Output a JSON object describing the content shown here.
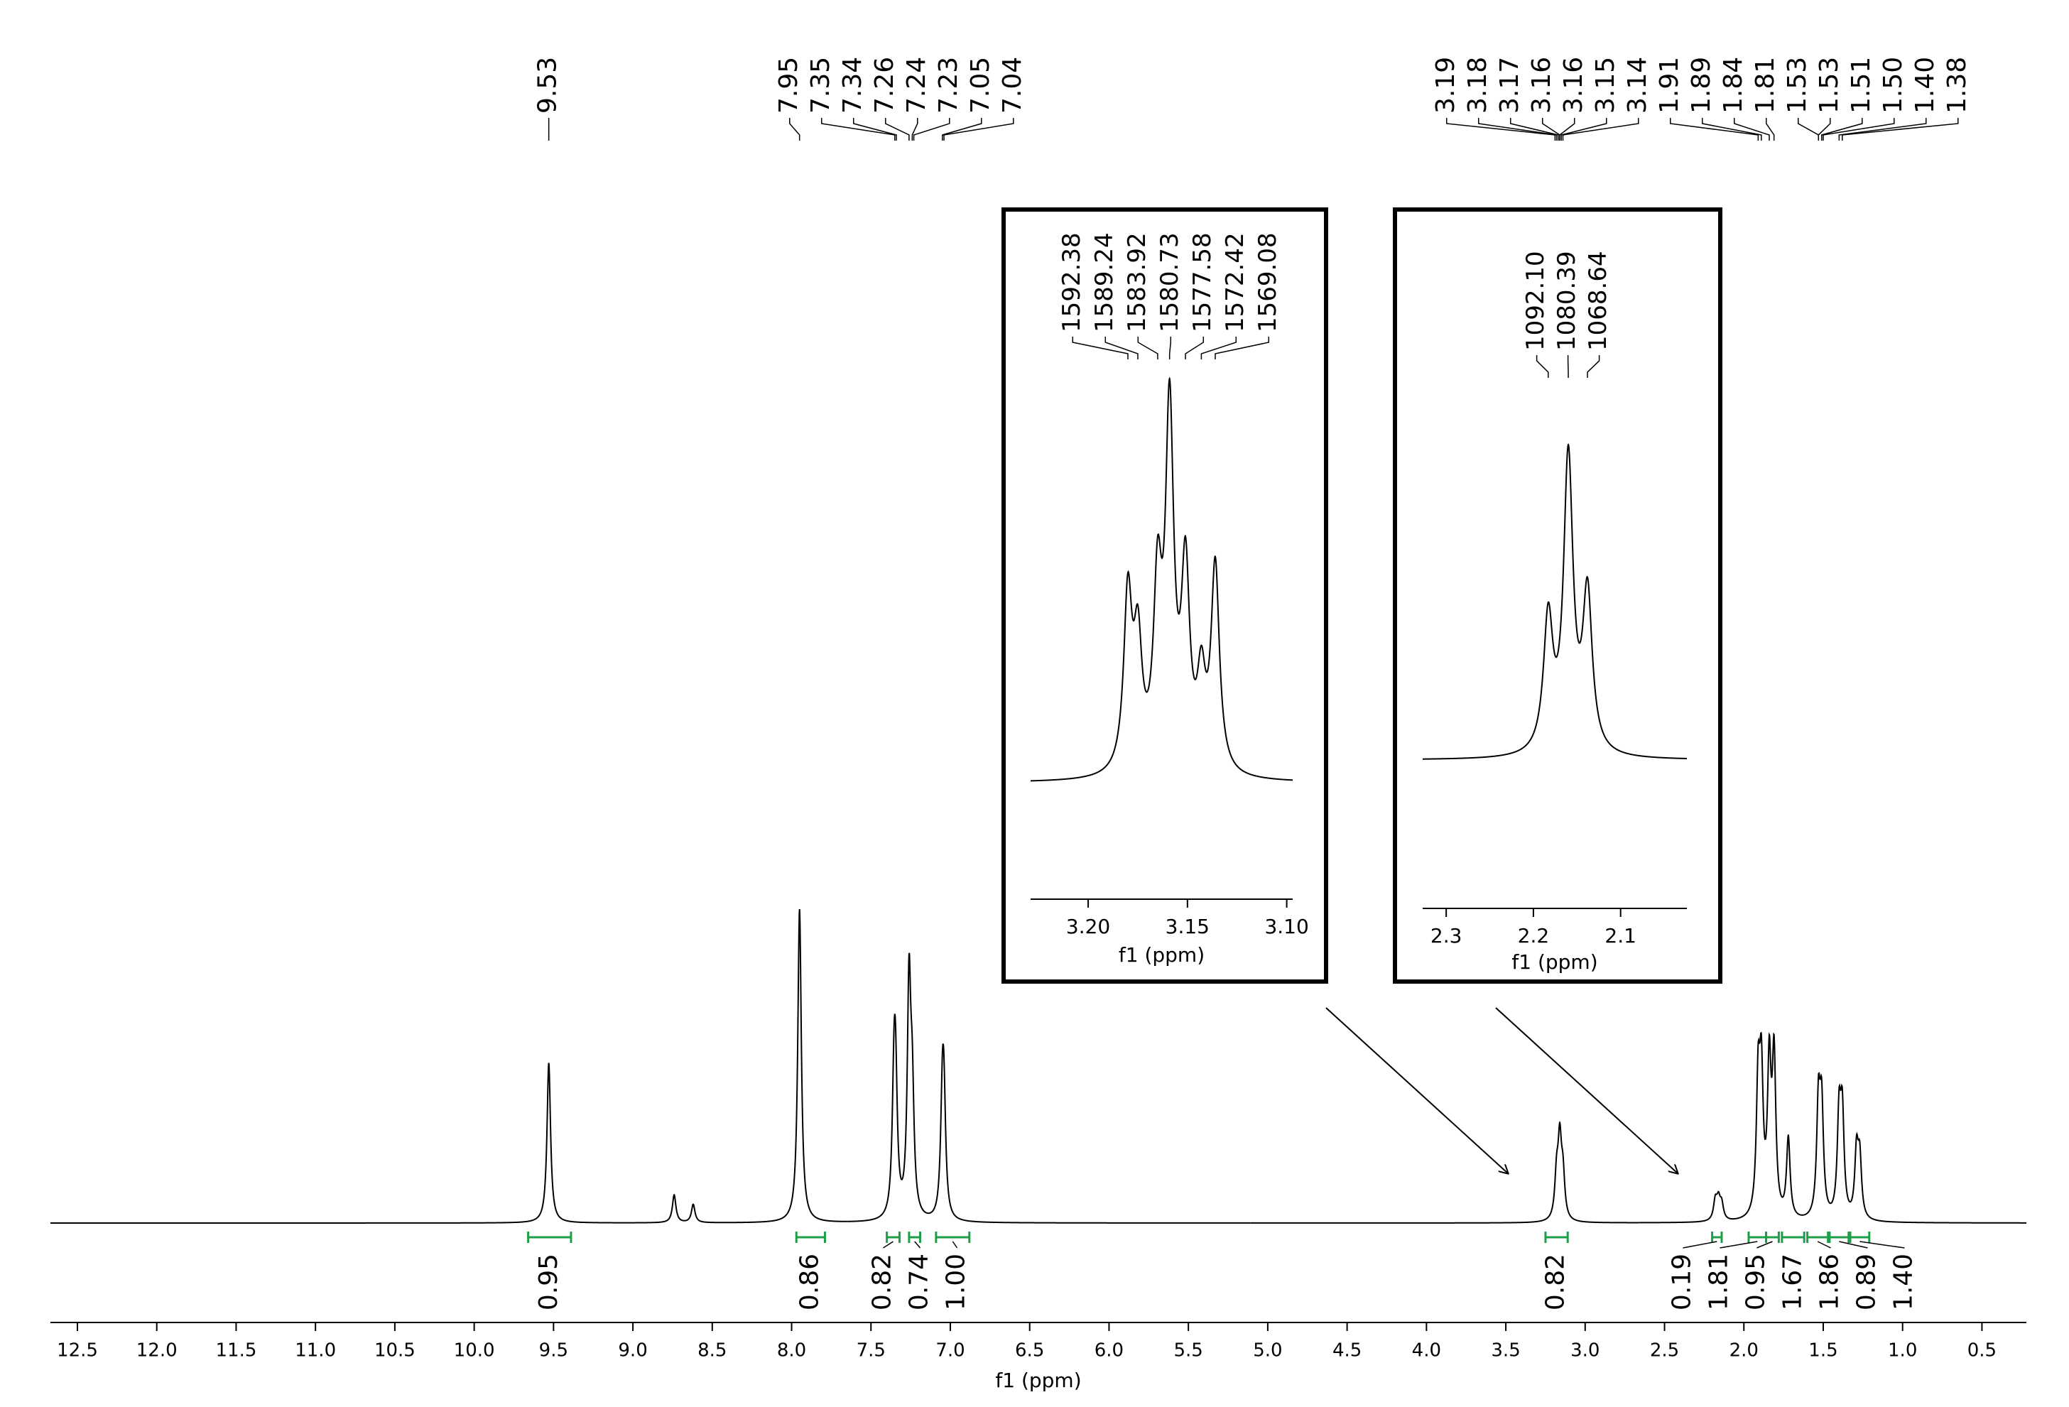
{
  "chart_data": [
    {
      "type": "nmr",
      "xlabel": "f1 (ppm)",
      "color": "#000000",
      "integral_color": "#1f9e4a",
      "xlim": [
        12.67,
        0.22
      ],
      "xticks": [
        12.5,
        {
          "value": 12,
          "label": "12.0"
        },
        11.5,
        {
          "value": 11,
          "label": "11.0"
        },
        10.5,
        {
          "value": 10,
          "label": "10.0"
        },
        9.5,
        {
          "value": 9,
          "label": "9.0"
        },
        8.5,
        {
          "value": 8,
          "label": "8.0"
        },
        7.5,
        {
          "value": 7,
          "label": "7.0"
        },
        6.5,
        {
          "value": 6,
          "label": "6.0"
        },
        5.5,
        {
          "value": 5,
          "label": "5.0"
        },
        4.5,
        {
          "value": 4,
          "label": "4.0"
        },
        3.5,
        {
          "value": 3,
          "label": "3.0"
        },
        2.5,
        {
          "value": 2,
          "label": "2.0"
        },
        1.5,
        {
          "value": 1,
          "label": "1.0"
        },
        0.5
      ],
      "peak_labels": {
        "values": [
          9.53,
          7.95,
          7.35,
          7.34,
          7.26,
          7.24,
          7.23,
          7.05,
          7.04,
          3.19,
          3.18,
          3.17,
          3.16,
          3.16,
          3.15,
          3.14,
          1.91,
          1.89,
          1.84,
          1.81,
          1.53,
          1.53,
          1.51,
          1.5,
          1.4,
          1.38
        ],
        "value_labels": [
          "9.53",
          "7.95",
          "7.35",
          "7.34",
          "7.26",
          "7.24",
          "7.23",
          "7.05",
          "7.04",
          "3.19",
          "3.18",
          "3.17",
          "3.16",
          "3.16",
          "3.15",
          "3.14",
          "1.91",
          "1.89",
          "1.84",
          "1.81",
          "1.53",
          "1.53",
          "1.51",
          "1.50",
          "1.40",
          "1.38"
        ]
      },
      "peaks": {
        "x": [
          9.53,
          8.74,
          8.62,
          7.95,
          7.355,
          7.345,
          7.26,
          7.24,
          7.05,
          7.04,
          3.18,
          3.16,
          3.14,
          2.18,
          2.16,
          2.14,
          1.91,
          1.89,
          1.84,
          1.81,
          1.72,
          1.53,
          1.51,
          1.4,
          1.38,
          1.29,
          1.27
        ],
        "heights": [
          51,
          9,
          6,
          100,
          62,
          63,
          86,
          59,
          54,
          53,
          22,
          32,
          22,
          9,
          10,
          8,
          57,
          60,
          60,
          60,
          28,
          47,
          46,
          43,
          43,
          28,
          26
        ]
      },
      "integrals": {
        "ranges": [
          [
            9.66,
            9.39
          ],
          [
            7.97,
            7.79
          ],
          [
            7.4,
            7.32
          ],
          [
            7.26,
            7.19
          ],
          [
            7.09,
            6.88
          ],
          [
            3.25,
            3.11
          ],
          [
            2.2,
            2.14
          ],
          [
            1.97,
            1.86
          ],
          [
            1.86,
            1.78
          ],
          [
            1.76,
            1.62
          ],
          [
            1.6,
            1.47
          ],
          [
            1.46,
            1.34
          ],
          [
            1.33,
            1.21
          ]
        ],
        "values": [
          0.95,
          0.86,
          0.82,
          0.74,
          1,
          0.82,
          0.19,
          1.81,
          0.95,
          1.67,
          1.86,
          0.89,
          1.4
        ],
        "value_labels": [
          "0.95",
          "0.86",
          "0.82",
          "0.74",
          "1.00",
          "0.82",
          "0.19",
          "1.81",
          "0.95",
          "1.67",
          "1.86",
          "0.89",
          "1.40"
        ]
      }
    },
    {
      "type": "nmr",
      "xlabel": "f1 (ppm)",
      "color": "#000000",
      "xlim": [
        3.229,
        3.097
      ],
      "xticks": [
        {
          "value": 3.2,
          "label": "3.20"
        },
        3.15,
        {
          "value": 3.1,
          "label": "3.10"
        }
      ],
      "peak_labels": {
        "values": [
          1592.38,
          1589.24,
          1583.92,
          1580.73,
          1577.58,
          1572.42,
          1569.08
        ],
        "value_labels": [
          "1592.38",
          "1589.24",
          "1583.92",
          "1580.73",
          "1577.58",
          "1572.42",
          "1569.08"
        ]
      },
      "peaks": {
        "x": [
          3.18,
          3.175,
          3.165,
          3.159,
          3.151,
          3.143,
          3.136
        ],
        "heights": [
          52,
          44,
          61,
          100,
          61,
          34,
          56
        ]
      }
    },
    {
      "type": "nmr",
      "xlabel": "f1 (ppm)",
      "color": "#000000",
      "xlim": [
        2.327,
        2.024
      ],
      "xticks": [
        2.3,
        2.2,
        2.1
      ],
      "peak_labels": {
        "values": [
          1092.1,
          1080.39,
          1068.64
        ],
        "value_labels": [
          "1092.10",
          "1080.39",
          "1068.64"
        ]
      },
      "peaks": {
        "x": [
          2.183,
          2.16,
          2.138
        ],
        "heights": [
          50,
          100,
          58
        ]
      }
    }
  ]
}
